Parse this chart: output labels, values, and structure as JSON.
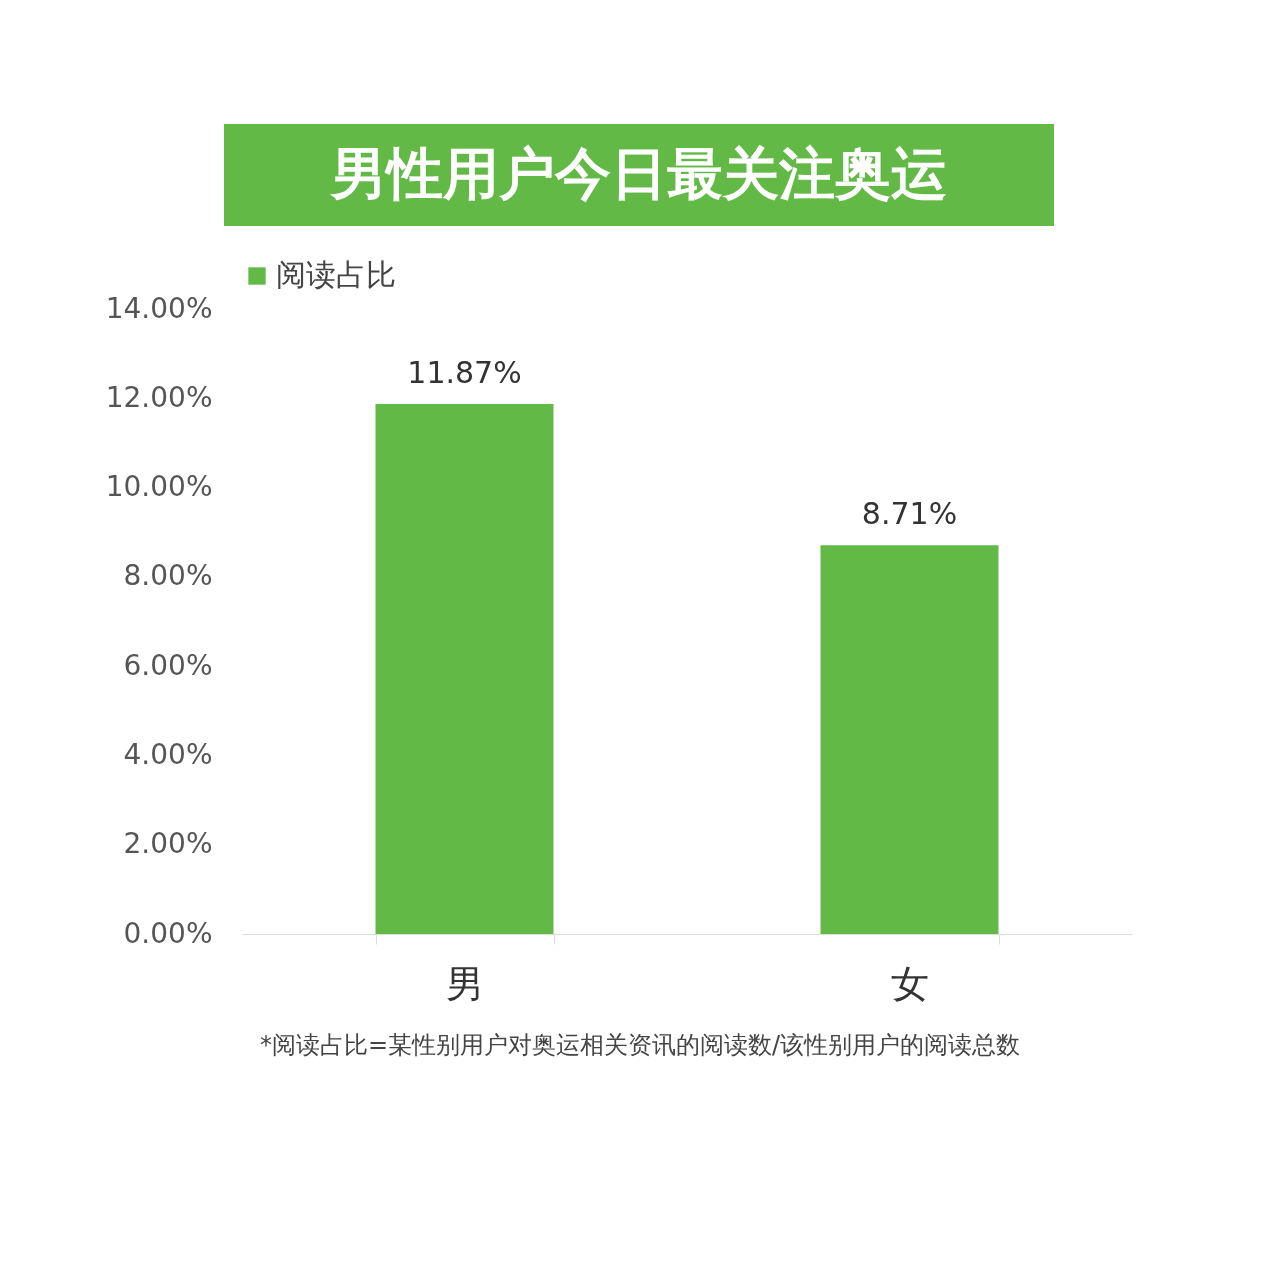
{
  "chart_data": {
    "type": "bar",
    "title": "男性用户今日最关注奥运",
    "categories": [
      "男",
      "女"
    ],
    "series": [
      {
        "name": "阅读占比",
        "color": "#62b946",
        "values": [
          11.87,
          8.71
        ],
        "value_labels": [
          "11.87%",
          "8.71%"
        ]
      }
    ],
    "ylim": [
      0,
      14
    ],
    "yticks": [
      {
        "value": 0,
        "label": "0.00%"
      },
      {
        "value": 2,
        "label": "2.00%"
      },
      {
        "value": 4,
        "label": "4.00%"
      },
      {
        "value": 6,
        "label": "6.00%"
      },
      {
        "value": 8,
        "label": "8.00%"
      },
      {
        "value": 10,
        "label": "10.00%"
      },
      {
        "value": 12,
        "label": "12.00%"
      },
      {
        "value": 14,
        "label": "14.00%"
      }
    ],
    "grid": false,
    "legend": "top",
    "annotations": [
      "*阅读占比=某性别用户对奥运相关资讯的阅读数/该性别用户的阅读总数"
    ]
  }
}
